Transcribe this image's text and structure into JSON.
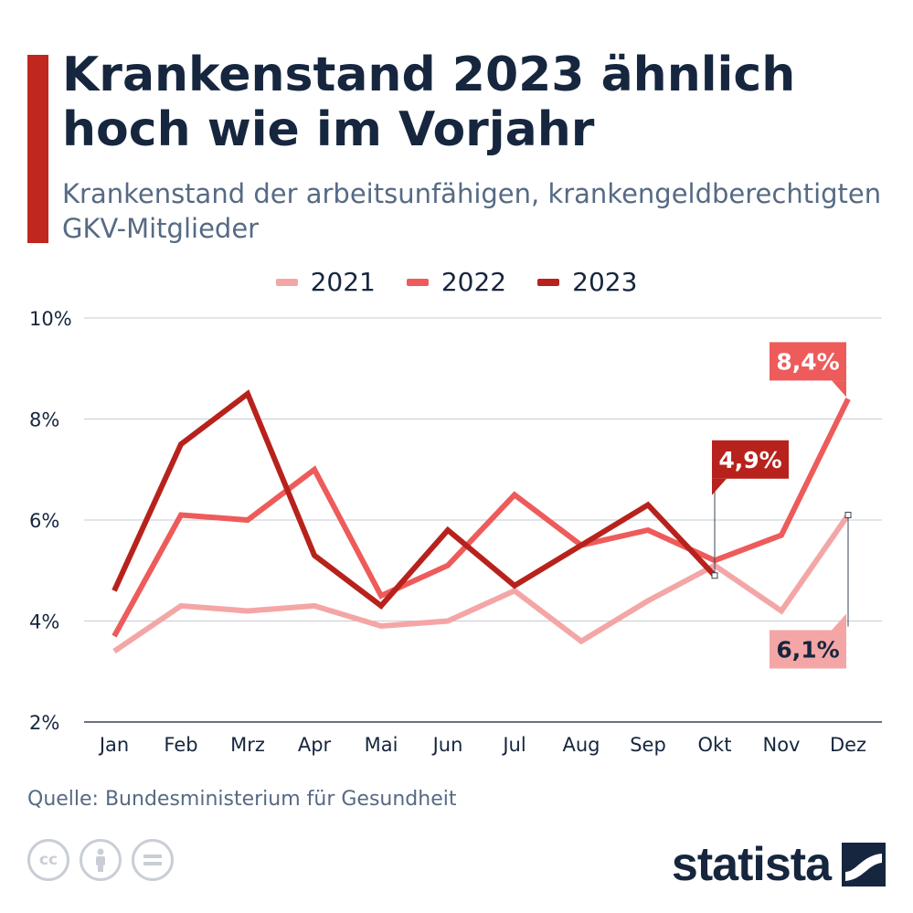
{
  "title": "Krankenstand 2023 ähnlich hoch wie im Vorjahr",
  "subtitle": "Krankenstand der arbeitsunfähigen, krankengeldberechtigten GKV-Mitglieder",
  "source": "Quelle: Bundesministerium für Gesundheit",
  "logo_text": "statista",
  "license_icons": [
    "cc-icon",
    "person-icon",
    "equals-icon"
  ],
  "chart_data": {
    "type": "line",
    "categories": [
      "Jan",
      "Feb",
      "Mrz",
      "Apr",
      "Mai",
      "Jun",
      "Jul",
      "Aug",
      "Sep",
      "Okt",
      "Nov",
      "Dez"
    ],
    "ylim": [
      2,
      10
    ],
    "yticks": [
      "2%",
      "4%",
      "6%",
      "8%",
      "10%"
    ],
    "grid": true,
    "legend_position": "top-center",
    "series": [
      {
        "name": "2021",
        "color": "#f4a6a6",
        "values": [
          3.4,
          4.3,
          4.2,
          4.3,
          3.9,
          4.0,
          4.6,
          3.6,
          4.4,
          5.1,
          4.2,
          6.1
        ]
      },
      {
        "name": "2022",
        "color": "#ee5b5b",
        "values": [
          3.7,
          6.1,
          6.0,
          7.0,
          4.5,
          5.1,
          6.5,
          5.5,
          5.8,
          5.2,
          5.7,
          8.4
        ]
      },
      {
        "name": "2023",
        "color": "#b8221c",
        "values": [
          4.6,
          7.5,
          8.5,
          5.3,
          4.3,
          5.8,
          4.7,
          5.5,
          6.3,
          4.9,
          null,
          null
        ]
      }
    ],
    "annotations": [
      {
        "text": "8,4%",
        "series": "2022",
        "category": "Dez",
        "color": "#ee5b5b"
      },
      {
        "text": "4,9%",
        "series": "2023",
        "category": "Okt",
        "color": "#b8221c"
      },
      {
        "text": "6,1%",
        "series": "2021",
        "category": "Dez",
        "color": "#f4a6a6"
      }
    ]
  }
}
